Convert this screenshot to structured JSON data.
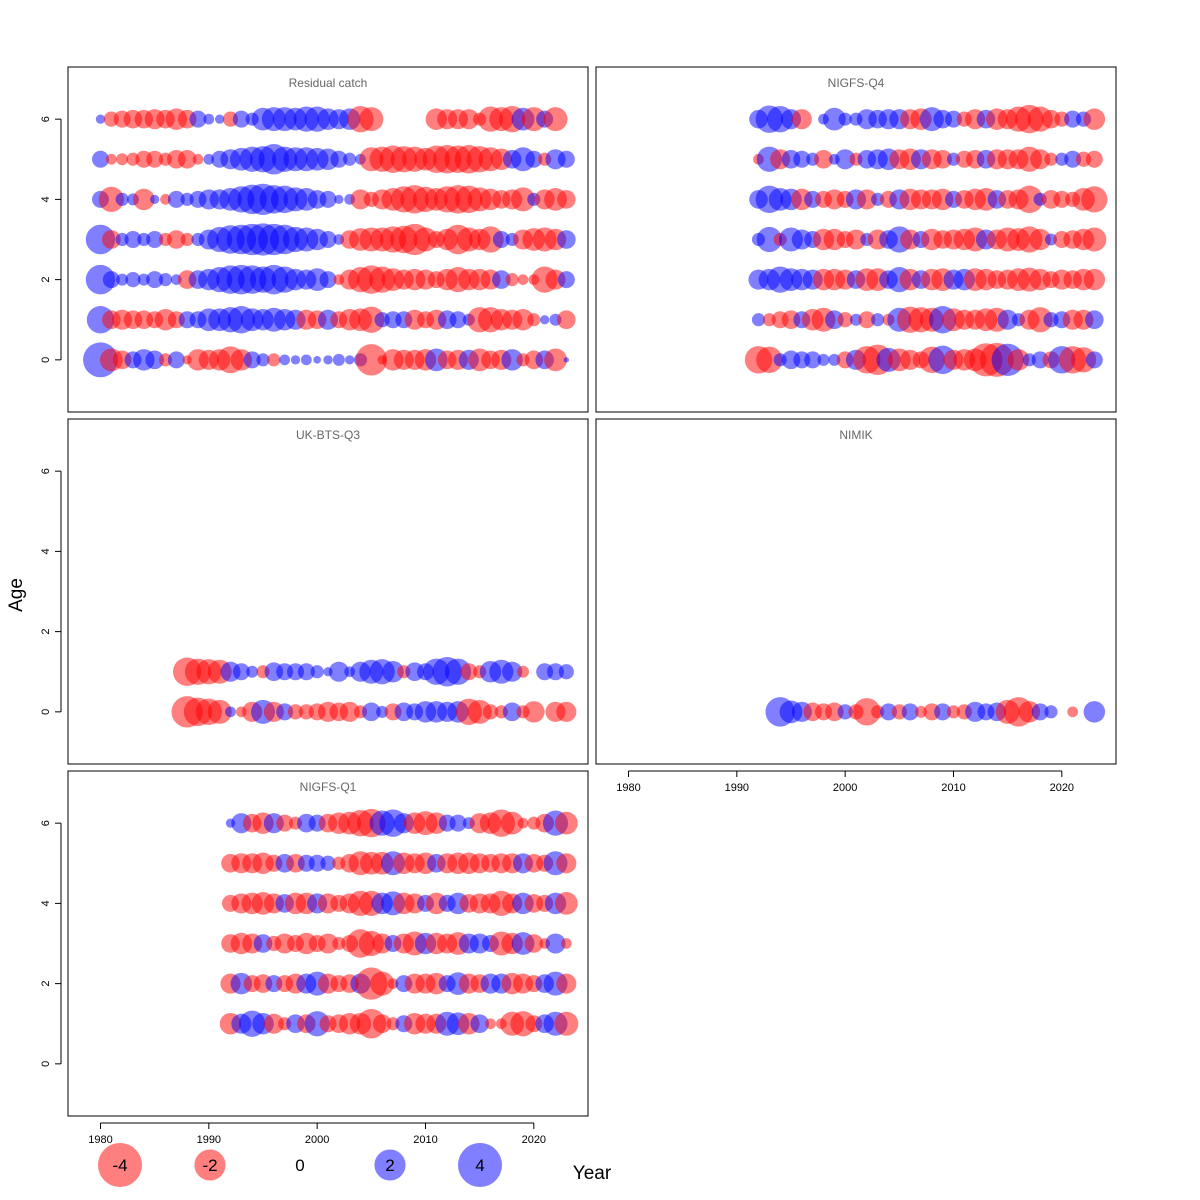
{
  "figure": {
    "ylabel": "Age",
    "xlabel": "Year",
    "x_ticks": [
      "1980",
      "1990",
      "2000",
      "2010",
      "2020"
    ],
    "y_ticks": [
      "0",
      "2",
      "4",
      "6"
    ],
    "legend": [
      {
        "label": "-4",
        "value": -4
      },
      {
        "label": "-2",
        "value": -2
      },
      {
        "label": "0",
        "value": 0
      },
      {
        "label": "2",
        "value": 2
      },
      {
        "label": "4",
        "value": 4
      }
    ],
    "colors": {
      "positive": "#0000ff",
      "negative": "#ff0000",
      "frame": "#000000",
      "title": "#666666"
    }
  },
  "chart_data": [
    {
      "type": "scatter",
      "title": "Residual catch",
      "xlim": [
        1977,
        2025
      ],
      "ylim": [
        -1.3,
        7.3
      ],
      "ages": [
        0,
        1,
        2,
        3,
        4,
        5,
        6
      ],
      "years": [
        1980,
        1981,
        1982,
        1983,
        1984,
        1985,
        1986,
        1987,
        1988,
        1989,
        1990,
        1991,
        1992,
        1993,
        1994,
        1995,
        1996,
        1997,
        1998,
        1999,
        2000,
        2001,
        2002,
        2003,
        2004,
        2005,
        2006,
        2007,
        2008,
        2009,
        2010,
        2011,
        2012,
        2013,
        2014,
        2015,
        2016,
        2017,
        2018,
        2019,
        2020,
        2021,
        2022,
        2023
      ],
      "residuals": {
        "0": [
          4.2,
          -1.8,
          -1.2,
          1.0,
          1.6,
          1.2,
          -0.6,
          1.0,
          -0.3,
          -1.6,
          -1.4,
          -1.6,
          -2.5,
          -1.6,
          1.0,
          0.6,
          -0.6,
          0.4,
          0.3,
          0.4,
          0.2,
          0.3,
          0.5,
          0.3,
          0.6,
          -3.4,
          -0.3,
          -1.6,
          -1.4,
          -1.4,
          -1.6,
          1.8,
          -1.2,
          -1.4,
          1.4,
          -1.8,
          -1.2,
          -1.4,
          1.6,
          -0.6,
          -1.2,
          1.2,
          -1.8,
          0.1
        ],
        "1": [
          2.6,
          -1.2,
          -1.4,
          -1.2,
          -1.2,
          -1.0,
          -1.6,
          -1.0,
          1.0,
          1.0,
          1.8,
          1.8,
          2.2,
          2.6,
          1.8,
          1.6,
          2.0,
          1.6,
          1.4,
          -1.4,
          -1.2,
          1.4,
          -1.0,
          -1.6,
          -1.8,
          -2.4,
          0.8,
          1.0,
          1.0,
          -1.4,
          -1.0,
          -1.4,
          1.2,
          1.0,
          0.5,
          -2.2,
          -2.2,
          -1.6,
          -1.4,
          -1.6,
          -0.6,
          0.3,
          0.5,
          -1.2
        ],
        "2": [
          3.0,
          1.0,
          0.5,
          0.8,
          0.5,
          1.0,
          0.6,
          0.4,
          -1.2,
          1.2,
          1.6,
          2.2,
          2.8,
          3.0,
          2.8,
          2.4,
          3.0,
          2.4,
          1.6,
          1.4,
          1.8,
          1.0,
          -0.4,
          -1.4,
          -2.2,
          -2.8,
          -2.4,
          -1.8,
          -1.4,
          -1.6,
          -1.4,
          -1.0,
          -1.6,
          -2.2,
          -1.6,
          -1.6,
          -1.4,
          1.2,
          -0.6,
          -0.4,
          -0.4,
          -2.4,
          -1.4,
          1.0
        ],
        "3": [
          3.0,
          -1.2,
          0.6,
          1.0,
          0.6,
          1.0,
          -0.6,
          -1.2,
          -0.6,
          0.6,
          1.4,
          2.2,
          2.8,
          3.0,
          3.4,
          3.6,
          3.4,
          3.0,
          2.2,
          2.0,
          1.6,
          1.0,
          0.4,
          -1.2,
          -1.8,
          -2.0,
          -2.0,
          -2.4,
          -2.6,
          -3.4,
          -2.0,
          -1.0,
          -1.6,
          -3.0,
          -2.0,
          -1.6,
          -2.4,
          1.0,
          0.6,
          -1.4,
          -1.8,
          -2.0,
          -1.6,
          1.2
        ],
        "4": [
          1.0,
          -2.2,
          0.6,
          0.5,
          -1.6,
          0.3,
          -0.4,
          1.0,
          0.6,
          1.0,
          1.4,
          1.4,
          1.8,
          2.4,
          3.0,
          3.4,
          2.8,
          2.6,
          2.0,
          1.8,
          1.2,
          1.0,
          0.3,
          0.4,
          -1.4,
          -0.8,
          -1.4,
          -1.8,
          -2.4,
          -2.8,
          -2.2,
          -1.8,
          -2.4,
          -2.8,
          -2.6,
          -2.0,
          -1.6,
          -1.2,
          -1.4,
          -2.0,
          0.6,
          -1.4,
          -1.8,
          -1.2
        ],
        "5": [
          1.0,
          -0.4,
          -0.5,
          -0.6,
          -1.0,
          -1.0,
          -0.6,
          -1.2,
          -1.2,
          -0.4,
          0.4,
          1.0,
          1.4,
          1.8,
          2.2,
          2.4,
          3.2,
          2.2,
          2.0,
          2.0,
          1.8,
          1.6,
          1.0,
          0.6,
          0.4,
          -2.0,
          -2.2,
          -2.6,
          -2.4,
          -2.2,
          -1.8,
          -2.6,
          -2.8,
          -2.6,
          -2.8,
          -2.4,
          -2.0,
          -1.6,
          1.2,
          2.0,
          1.0,
          -0.6,
          1.4,
          1.0
        ],
        "6": [
          0.3,
          -0.8,
          -1.0,
          -1.2,
          -1.2,
          -1.4,
          -1.2,
          -1.6,
          -1.2,
          1.0,
          0.4,
          0.3,
          -0.8,
          1.0,
          0.6,
          1.8,
          2.0,
          2.0,
          1.8,
          2.2,
          2.2,
          1.6,
          1.4,
          1.6,
          -2.4,
          -2.0,
          null,
          null,
          null,
          null,
          null,
          -1.6,
          -1.4,
          -1.4,
          -1.4,
          -0.6,
          -2.2,
          -2.0,
          -2.4,
          1.8,
          -2.0,
          1.0,
          -2.0,
          null
        ]
      }
    },
    {
      "type": "scatter",
      "title": "NIGFS-Q4",
      "xlim": [
        1977,
        2025
      ],
      "ylim": [
        -1.3,
        7.3
      ],
      "ages": [
        0,
        1,
        2,
        3,
        4,
        5,
        6
      ],
      "years": [
        1992,
        1993,
        1994,
        1995,
        1996,
        1997,
        1998,
        1999,
        2000,
        2001,
        2002,
        2003,
        2004,
        2005,
        2006,
        2007,
        2008,
        2009,
        2010,
        2011,
        2012,
        2013,
        2014,
        2015,
        2016,
        2017,
        2018,
        2019,
        2020,
        2021,
        2022,
        2023
      ],
      "residuals": {
        "0": [
          -2.6,
          -2.4,
          0.6,
          1.2,
          1.0,
          1.0,
          0.5,
          0.5,
          -1.0,
          1.4,
          -2.6,
          -3.2,
          2.0,
          -1.8,
          -1.4,
          -1.0,
          -2.4,
          2.8,
          -1.4,
          -1.6,
          -1.8,
          -3.8,
          -4.0,
          3.6,
          -1.6,
          0.6,
          1.0,
          -1.0,
          2.6,
          -2.6,
          -2.2,
          1.0
        ],
        "1": [
          0.6,
          -0.6,
          -1.0,
          -1.2,
          1.0,
          -1.6,
          -2.0,
          1.2,
          -0.8,
          0.5,
          -1.0,
          0.6,
          -0.5,
          2.0,
          -2.4,
          -2.2,
          -2.0,
          2.6,
          -1.8,
          -1.4,
          -1.4,
          -1.8,
          -2.0,
          1.4,
          0.6,
          -1.4,
          -2.2,
          0.8,
          1.0,
          -1.4,
          -1.4,
          1.2
        ],
        "2": [
          1.4,
          1.6,
          2.4,
          1.8,
          1.6,
          1.4,
          -1.6,
          -1.6,
          -1.4,
          1.2,
          -1.8,
          -1.8,
          1.2,
          2.2,
          -1.6,
          1.2,
          -1.6,
          -1.8,
          1.4,
          1.6,
          -1.8,
          -1.6,
          -1.2,
          -1.4,
          -1.8,
          -2.0,
          -1.6,
          -1.0,
          -1.4,
          -1.2,
          -1.6,
          -1.6
        ],
        "3": [
          0.6,
          2.2,
          -0.6,
          2.0,
          1.4,
          1.0,
          -1.6,
          -1.6,
          -1.0,
          -1.4,
          0.6,
          -1.4,
          1.2,
          2.4,
          -1.4,
          1.0,
          -1.6,
          -1.2,
          -1.4,
          -1.6,
          -2.0,
          1.4,
          -1.4,
          -2.0,
          -1.8,
          -2.4,
          -1.6,
          0.5,
          -1.0,
          -1.2,
          -1.6,
          -2.0
        ],
        "4": [
          1.2,
          2.6,
          1.8,
          1.6,
          -1.6,
          1.0,
          -1.0,
          -1.4,
          -1.0,
          1.4,
          -1.4,
          0.6,
          -1.0,
          1.4,
          -1.6,
          -1.4,
          -1.4,
          -1.6,
          1.0,
          -1.2,
          -1.6,
          -1.8,
          1.2,
          -1.2,
          -1.4,
          -2.6,
          0.6,
          -1.2,
          -1.0,
          -0.8,
          -1.8,
          -2.4
        ],
        "5": [
          -0.4,
          2.2,
          -1.4,
          1.2,
          1.0,
          0.6,
          -1.2,
          0.4,
          1.4,
          -0.6,
          1.2,
          1.4,
          1.6,
          -1.4,
          -1.6,
          1.4,
          -1.4,
          -1.2,
          0.6,
          -1.0,
          -1.2,
          1.2,
          -1.4,
          -1.4,
          -1.4,
          -2.2,
          -1.4,
          -0.6,
          0.6,
          1.0,
          -0.8,
          -1.0
        ],
        "6": [
          1.2,
          2.6,
          2.4,
          1.4,
          -1.4,
          null,
          0.4,
          1.8,
          0.6,
          0.6,
          1.4,
          1.2,
          1.4,
          1.4,
          -1.4,
          -1.6,
          2.0,
          1.2,
          1.0,
          -0.8,
          -1.4,
          1.2,
          -1.6,
          -1.4,
          -2.2,
          -2.8,
          -2.2,
          -1.2,
          -0.8,
          1.0,
          0.8,
          -1.6
        ]
      }
    },
    {
      "type": "scatter",
      "title": "UK-BTS-Q3",
      "xlim": [
        1977,
        2025
      ],
      "ylim": [
        -1.3,
        7.3
      ],
      "ages": [
        0,
        1
      ],
      "years": [
        1988,
        1989,
        1990,
        1991,
        1992,
        1993,
        1994,
        1995,
        1996,
        1997,
        1998,
        1999,
        2000,
        2001,
        2002,
        2003,
        2004,
        2005,
        2006,
        2007,
        2008,
        2009,
        2010,
        2011,
        2012,
        2013,
        2014,
        2015,
        2016,
        2017,
        2018,
        2019,
        2020,
        2021,
        2022,
        2023
      ],
      "residuals": {
        "0": [
          -3.4,
          -2.8,
          -2.4,
          -2.0,
          0.4,
          -0.4,
          -1.4,
          2.0,
          -1.4,
          1.0,
          -0.8,
          -0.8,
          -1.0,
          -1.4,
          -1.2,
          -1.4,
          -0.6,
          1.2,
          0.5,
          -1.0,
          1.2,
          1.0,
          1.6,
          1.6,
          1.4,
          1.6,
          -2.4,
          -2.0,
          -0.8,
          -0.6,
          1.2,
          -0.6,
          -1.6,
          null,
          -1.4,
          -1.4
        ],
        "1": [
          -2.8,
          -2.4,
          -2.2,
          -2.0,
          1.4,
          1.0,
          0.5,
          -0.6,
          1.2,
          1.0,
          1.0,
          1.0,
          0.6,
          0.3,
          1.4,
          0.4,
          1.4,
          2.0,
          2.2,
          1.6,
          -0.6,
          1.2,
          1.0,
          2.4,
          3.0,
          2.4,
          -1.0,
          -0.6,
          1.6,
          2.0,
          1.4,
          -0.5,
          null,
          1.0,
          1.0,
          0.8
        ]
      }
    },
    {
      "type": "scatter",
      "title": "NIMIK",
      "xlim": [
        1977,
        2025
      ],
      "ylim": [
        -1.3,
        7.3
      ],
      "ages": [
        0
      ],
      "years": [
        1994,
        1995,
        1996,
        1997,
        1998,
        1999,
        2000,
        2001,
        2002,
        2003,
        2004,
        2005,
        2006,
        2007,
        2008,
        2009,
        2010,
        2011,
        2012,
        2013,
        2014,
        2015,
        2016,
        2017,
        2018,
        2019,
        2020,
        2021,
        2022,
        2023
      ],
      "residuals": {
        "0": [
          3.0,
          1.8,
          1.4,
          -1.2,
          -1.0,
          -1.2,
          0.8,
          -0.8,
          -2.6,
          -0.6,
          1.0,
          -0.8,
          1.0,
          -0.5,
          -1.0,
          1.0,
          -0.6,
          -0.8,
          1.4,
          1.0,
          1.2,
          -2.0,
          -3.0,
          -1.6,
          1.0,
          0.6,
          null,
          -0.4,
          null,
          1.6
        ]
      }
    },
    {
      "type": "scatter",
      "title": "NIGFS-Q1",
      "xlim": [
        1977,
        2025
      ],
      "ylim": [
        -1.3,
        7.3
      ],
      "ages": [
        1,
        2,
        3,
        4,
        5,
        6
      ],
      "years": [
        1992,
        1993,
        1994,
        1995,
        1996,
        1997,
        1998,
        1999,
        2000,
        2001,
        2002,
        2003,
        2004,
        2005,
        2006,
        2007,
        2008,
        2009,
        2010,
        2011,
        2012,
        2013,
        2014,
        2015,
        2016,
        2017,
        2018,
        2019,
        2020,
        2021,
        2022,
        2023
      ],
      "residuals": {
        "1": [
          -1.6,
          1.4,
          2.4,
          1.6,
          -1.4,
          -0.6,
          1.2,
          -1.2,
          2.2,
          -1.0,
          -1.2,
          -1.6,
          -1.6,
          -3.0,
          -1.2,
          -0.6,
          1.0,
          -1.6,
          -1.4,
          -1.4,
          2.0,
          1.8,
          -1.6,
          1.2,
          -0.4,
          -0.4,
          -2.0,
          -2.2,
          -1.0,
          1.2,
          2.0,
          -2.0
        ],
        "2": [
          -1.4,
          1.6,
          -1.0,
          -1.2,
          1.0,
          -1.0,
          -1.4,
          1.4,
          2.0,
          -1.4,
          -1.0,
          -1.2,
          1.4,
          -3.6,
          -2.0,
          -0.4,
          1.0,
          -1.4,
          -1.4,
          -1.6,
          1.0,
          1.8,
          -1.4,
          -1.2,
          1.4,
          1.4,
          -1.6,
          -1.4,
          -1.0,
          1.2,
          2.0,
          -1.4
        ],
        "3": [
          -1.2,
          -1.6,
          -1.4,
          1.2,
          -0.8,
          -1.4,
          -1.0,
          -1.6,
          -1.0,
          -1.4,
          -0.6,
          -1.0,
          -2.8,
          -2.2,
          -1.4,
          1.0,
          -1.4,
          -2.0,
          1.6,
          -1.6,
          -1.4,
          -1.8,
          1.4,
          1.4,
          1.0,
          -2.0,
          -1.6,
          1.8,
          -1.2,
          -0.4,
          1.4,
          -0.4
        ],
        "4": [
          -1.0,
          -1.4,
          -1.6,
          -1.8,
          -1.4,
          1.2,
          -1.6,
          -1.6,
          1.4,
          -1.4,
          -1.0,
          -1.4,
          -2.2,
          -2.2,
          1.6,
          2.0,
          -1.6,
          -1.4,
          1.0,
          -1.6,
          1.0,
          1.6,
          -1.2,
          -1.4,
          -1.4,
          -2.2,
          -1.4,
          1.6,
          -1.2,
          -1.0,
          1.6,
          -1.8
        ],
        "5": [
          -1.2,
          -1.4,
          -1.4,
          -1.6,
          -1.0,
          1.2,
          -1.2,
          1.0,
          1.0,
          0.8,
          -0.6,
          -1.2,
          -2.0,
          -1.8,
          -1.8,
          2.0,
          -1.6,
          -1.4,
          -1.6,
          1.2,
          -1.4,
          -1.6,
          -1.6,
          -1.4,
          -1.2,
          -1.4,
          -1.4,
          1.4,
          -1.2,
          -1.0,
          2.0,
          -1.4
        ],
        "6": [
          0.3,
          1.4,
          -1.2,
          -1.6,
          1.4,
          -1.0,
          -0.6,
          1.2,
          1.0,
          -1.2,
          -1.6,
          -1.8,
          -2.4,
          -2.8,
          2.2,
          2.6,
          1.4,
          -1.6,
          -2.0,
          -1.6,
          1.0,
          1.0,
          0.5,
          -1.4,
          -1.6,
          -2.6,
          -1.8,
          -0.4,
          -0.6,
          -1.2,
          2.2,
          -1.8
        ]
      }
    }
  ]
}
